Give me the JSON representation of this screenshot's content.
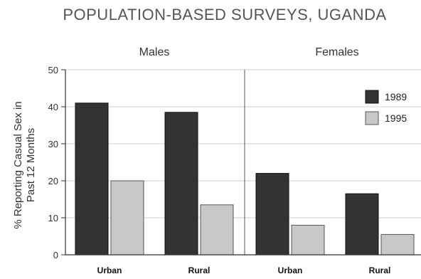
{
  "chart_data": {
    "type": "bar",
    "title": "POPULATION-BASED SURVEYS, UGANDA",
    "ylabel": "% Reporting Casual Sex in Past 12 Months",
    "ylabel_lines": [
      "% Reporting Casual Sex in",
      "Past 12 Months"
    ],
    "xlabel": "",
    "ylim": [
      0,
      50
    ],
    "yticks": [
      0,
      10,
      20,
      30,
      40,
      50
    ],
    "grid": true,
    "legend_position": "top-right",
    "panels": [
      {
        "name": "Males",
        "categories": [
          "Urban",
          "Rural"
        ]
      },
      {
        "name": "Females",
        "categories": [
          "Urban",
          "Rural"
        ]
      }
    ],
    "series": [
      {
        "name": "1989",
        "color": "#333333",
        "values": [
          [
            41,
            38.5
          ],
          [
            22,
            16.5
          ]
        ]
      },
      {
        "name": "1995",
        "color": "#c8c8c8",
        "values": [
          [
            20,
            13.5
          ],
          [
            8,
            5.5
          ]
        ]
      }
    ]
  }
}
